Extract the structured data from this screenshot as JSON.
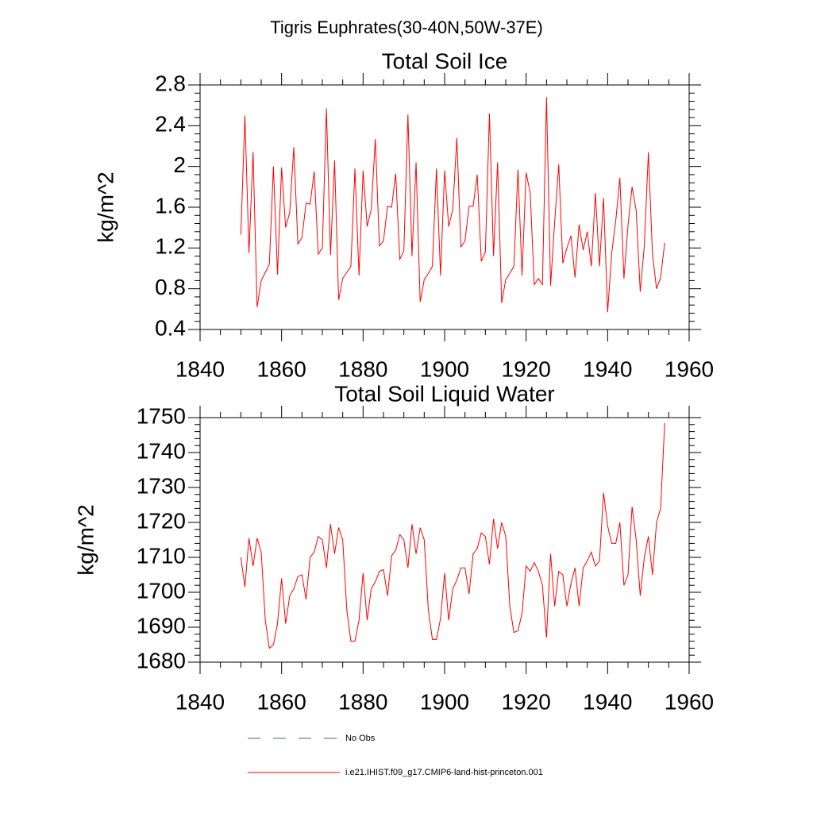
{
  "title": "Tigris Euphrates(30-40N,50W-37E)",
  "chart_data": [
    {
      "type": "line",
      "title": "Total Soil Ice",
      "ylabel": "kg/m^2",
      "xlim": [
        1840,
        1960
      ],
      "xticks": [
        1840,
        1860,
        1880,
        1900,
        1920,
        1940,
        1960
      ],
      "ylim": [
        0.4,
        2.8
      ],
      "yticks": [
        0.4,
        0.8,
        1.2,
        1.6,
        2.0,
        2.4,
        2.8
      ],
      "x": [
        1850,
        1851,
        1852,
        1853,
        1854,
        1855,
        1856,
        1857,
        1858,
        1859,
        1860,
        1861,
        1862,
        1863,
        1864,
        1865,
        1866,
        1867,
        1868,
        1869,
        1870,
        1871,
        1872,
        1873,
        1874,
        1875,
        1876,
        1877,
        1878,
        1879,
        1880,
        1881,
        1882,
        1883,
        1884,
        1885,
        1886,
        1887,
        1888,
        1889,
        1890,
        1891,
        1892,
        1893,
        1894,
        1895,
        1896,
        1897,
        1898,
        1899,
        1900,
        1901,
        1902,
        1903,
        1904,
        1905,
        1906,
        1907,
        1908,
        1909,
        1910,
        1911,
        1912,
        1913,
        1914,
        1915,
        1916,
        1917,
        1918,
        1919,
        1920,
        1921,
        1922,
        1923,
        1924,
        1925,
        1926,
        1927,
        1928,
        1929,
        1930,
        1931,
        1932,
        1933,
        1934,
        1935,
        1936,
        1937,
        1938,
        1939,
        1940,
        1941,
        1942,
        1943,
        1944,
        1945,
        1946,
        1947,
        1948,
        1949,
        1950,
        1951,
        1952,
        1953,
        1954
      ],
      "series": [
        {
          "color": "#ff0000",
          "values": [
            1.33,
            2.5,
            1.15,
            2.14,
            0.62,
            0.88,
            0.96,
            1.04,
            2.0,
            0.94,
            1.99,
            1.4,
            1.55,
            2.19,
            1.24,
            1.3,
            1.64,
            1.63,
            1.95,
            1.14,
            1.2,
            2.57,
            1.13,
            2.06,
            0.69,
            0.9,
            0.96,
            1.02,
            1.98,
            0.93,
            1.96,
            1.41,
            1.58,
            2.27,
            1.22,
            1.27,
            1.61,
            1.6,
            1.93,
            1.09,
            1.17,
            2.51,
            1.12,
            2.04,
            0.67,
            0.89,
            0.95,
            1.02,
            1.98,
            0.93,
            1.96,
            1.41,
            1.58,
            2.28,
            1.21,
            1.27,
            1.61,
            1.61,
            1.92,
            1.07,
            1.16,
            2.52,
            1.12,
            2.04,
            0.66,
            0.89,
            0.95,
            1.02,
            1.97,
            0.93,
            1.94,
            1.74,
            0.84,
            0.9,
            0.84,
            2.68,
            0.83,
            1.45,
            2.02,
            1.05,
            1.2,
            1.32,
            0.91,
            1.43,
            1.18,
            1.36,
            1.02,
            1.74,
            1.02,
            1.69,
            0.57,
            1.15,
            1.47,
            1.89,
            0.9,
            1.42,
            1.8,
            1.57,
            0.77,
            1.22,
            2.14,
            1.14,
            0.8,
            0.91,
            1.25
          ]
        }
      ]
    },
    {
      "type": "line",
      "title": "Total Soil Liquid Water",
      "ylabel": "kg/m^2",
      "xlim": [
        1840,
        1960
      ],
      "xticks": [
        1840,
        1860,
        1880,
        1900,
        1920,
        1940,
        1960
      ],
      "ylim": [
        1680,
        1750
      ],
      "yticks": [
        1680,
        1690,
        1700,
        1710,
        1720,
        1730,
        1740,
        1750
      ],
      "x": [
        1850,
        1851,
        1852,
        1853,
        1854,
        1855,
        1856,
        1857,
        1858,
        1859,
        1860,
        1861,
        1862,
        1863,
        1864,
        1865,
        1866,
        1867,
        1868,
        1869,
        1870,
        1871,
        1872,
        1873,
        1874,
        1875,
        1876,
        1877,
        1878,
        1879,
        1880,
        1881,
        1882,
        1883,
        1884,
        1885,
        1886,
        1887,
        1888,
        1889,
        1890,
        1891,
        1892,
        1893,
        1894,
        1895,
        1896,
        1897,
        1898,
        1899,
        1900,
        1901,
        1902,
        1903,
        1904,
        1905,
        1906,
        1907,
        1908,
        1909,
        1910,
        1911,
        1912,
        1913,
        1914,
        1915,
        1916,
        1917,
        1918,
        1919,
        1920,
        1921,
        1922,
        1923,
        1924,
        1925,
        1926,
        1927,
        1928,
        1929,
        1930,
        1931,
        1932,
        1933,
        1934,
        1935,
        1936,
        1937,
        1938,
        1939,
        1940,
        1941,
        1942,
        1943,
        1944,
        1945,
        1946,
        1947,
        1948,
        1949,
        1950,
        1951,
        1952,
        1953,
        1954
      ],
      "series": [
        {
          "color": "#ff0000",
          "values": [
            1710,
            1701.5,
            1715.5,
            1707.5,
            1715.5,
            1711.5,
            1692,
            1684,
            1685,
            1691,
            1704,
            1691,
            1699,
            1701,
            1704.5,
            1705,
            1698,
            1710,
            1711.5,
            1716,
            1715,
            1707,
            1719.5,
            1711,
            1718.5,
            1715,
            1695,
            1686,
            1686,
            1692,
            1705.5,
            1692,
            1701,
            1703,
            1706,
            1706.5,
            1699,
            1710.5,
            1712,
            1716.5,
            1715,
            1707,
            1719.5,
            1711,
            1718.5,
            1715,
            1695,
            1686.5,
            1686.5,
            1692.5,
            1705.5,
            1692,
            1701,
            1703.5,
            1707,
            1707,
            1699.5,
            1711,
            1712.5,
            1717,
            1716,
            1708,
            1721,
            1712.5,
            1720,
            1716,
            1696,
            1688.5,
            1689,
            1694,
            1707.5,
            1706,
            1708.5,
            1706,
            1702,
            1687,
            1711,
            1696,
            1706,
            1705,
            1696,
            1702.5,
            1707,
            1696,
            1707,
            1709,
            1711.5,
            1707.5,
            1709,
            1728.5,
            1719,
            1714,
            1714,
            1720,
            1702,
            1705,
            1724.5,
            1715,
            1699,
            1710,
            1716,
            1705,
            1720,
            1724,
            1748.5
          ]
        }
      ]
    }
  ],
  "legend": [
    {
      "name": "No Obs",
      "color": "#5a5a8c",
      "style": "dashed"
    },
    {
      "name": "i.e21.IHIST.f09_g17.CMIP6-land-hist-princeton.001",
      "color": "#ff0000",
      "style": "solid"
    }
  ]
}
